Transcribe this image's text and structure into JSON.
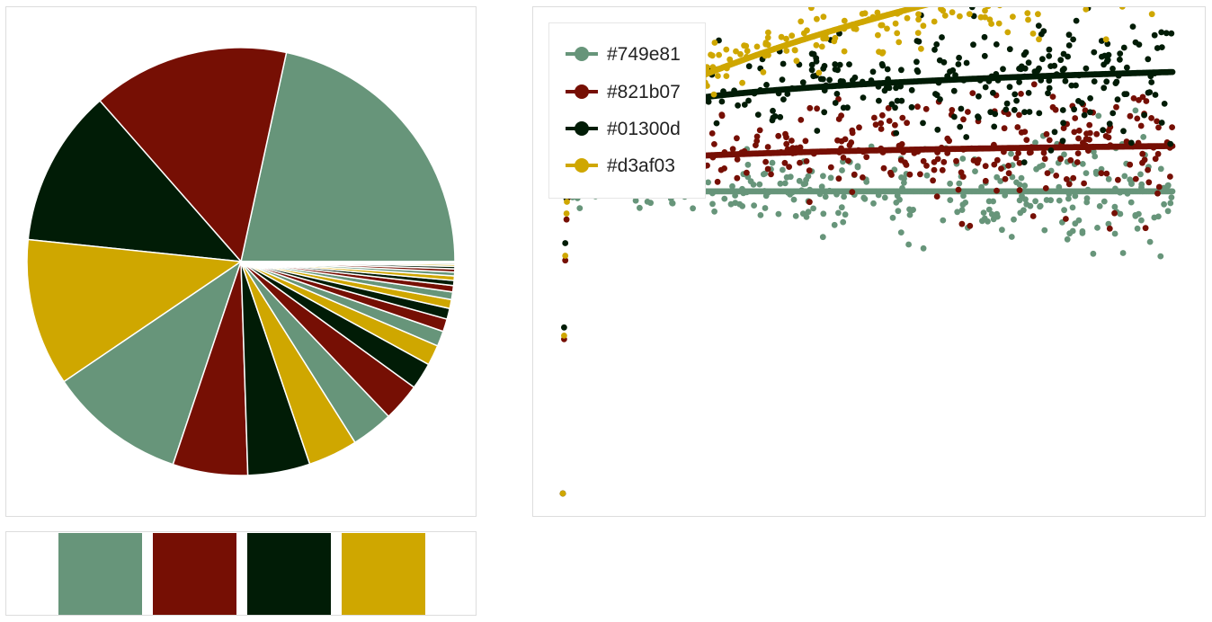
{
  "palette": [
    {
      "name": "#749e81",
      "color": "#67957a"
    },
    {
      "name": "#821b07",
      "color": "#760f04"
    },
    {
      "name": "#01300d",
      "color": "#011c06"
    },
    {
      "name": "#d3af03",
      "color": "#cfa700"
    }
  ],
  "chart_data": [
    {
      "type": "pie",
      "title": "",
      "values": [
        22.5,
        15.5,
        12.4,
        11.6,
        10.8,
        5.9,
        4.9,
        3.9,
        3.3,
        3.0,
        2.1,
        1.6,
        1.2,
        1.0,
        0.85,
        0.7,
        0.6,
        0.5,
        0.4,
        0.35,
        0.3,
        0.25,
        0.2,
        0.15,
        0.12,
        0.1
      ],
      "slice_colors": [
        "#67957a",
        "#760f04",
        "#011c06",
        "#cfa700"
      ],
      "start": "3 o'clock",
      "direction": "counterclockwise"
    },
    {
      "type": "scatter",
      "title": "",
      "xlabel": "",
      "ylabel": "",
      "xlim": [
        0,
        1000
      ],
      "ylim": [
        -10,
        5.5
      ],
      "legend_position": "top-left",
      "series": [
        {
          "name": "#749e81",
          "color": "#67957a",
          "trend": "flat",
          "start": 0,
          "end": 0,
          "spread": 1.6
        },
        {
          "name": "#821b07",
          "color": "#760f04",
          "trend": "log",
          "start": 0,
          "end": 1.5,
          "spread": 1.8
        },
        {
          "name": "#01300d",
          "color": "#011c06",
          "trend": "log",
          "start": 0,
          "end": 3.95,
          "spread": 1.9
        },
        {
          "name": "#d3af03",
          "color": "#cfa700",
          "trend": "sqrt",
          "start": 0,
          "end": 8.0,
          "spread": 1.7
        }
      ]
    }
  ]
}
